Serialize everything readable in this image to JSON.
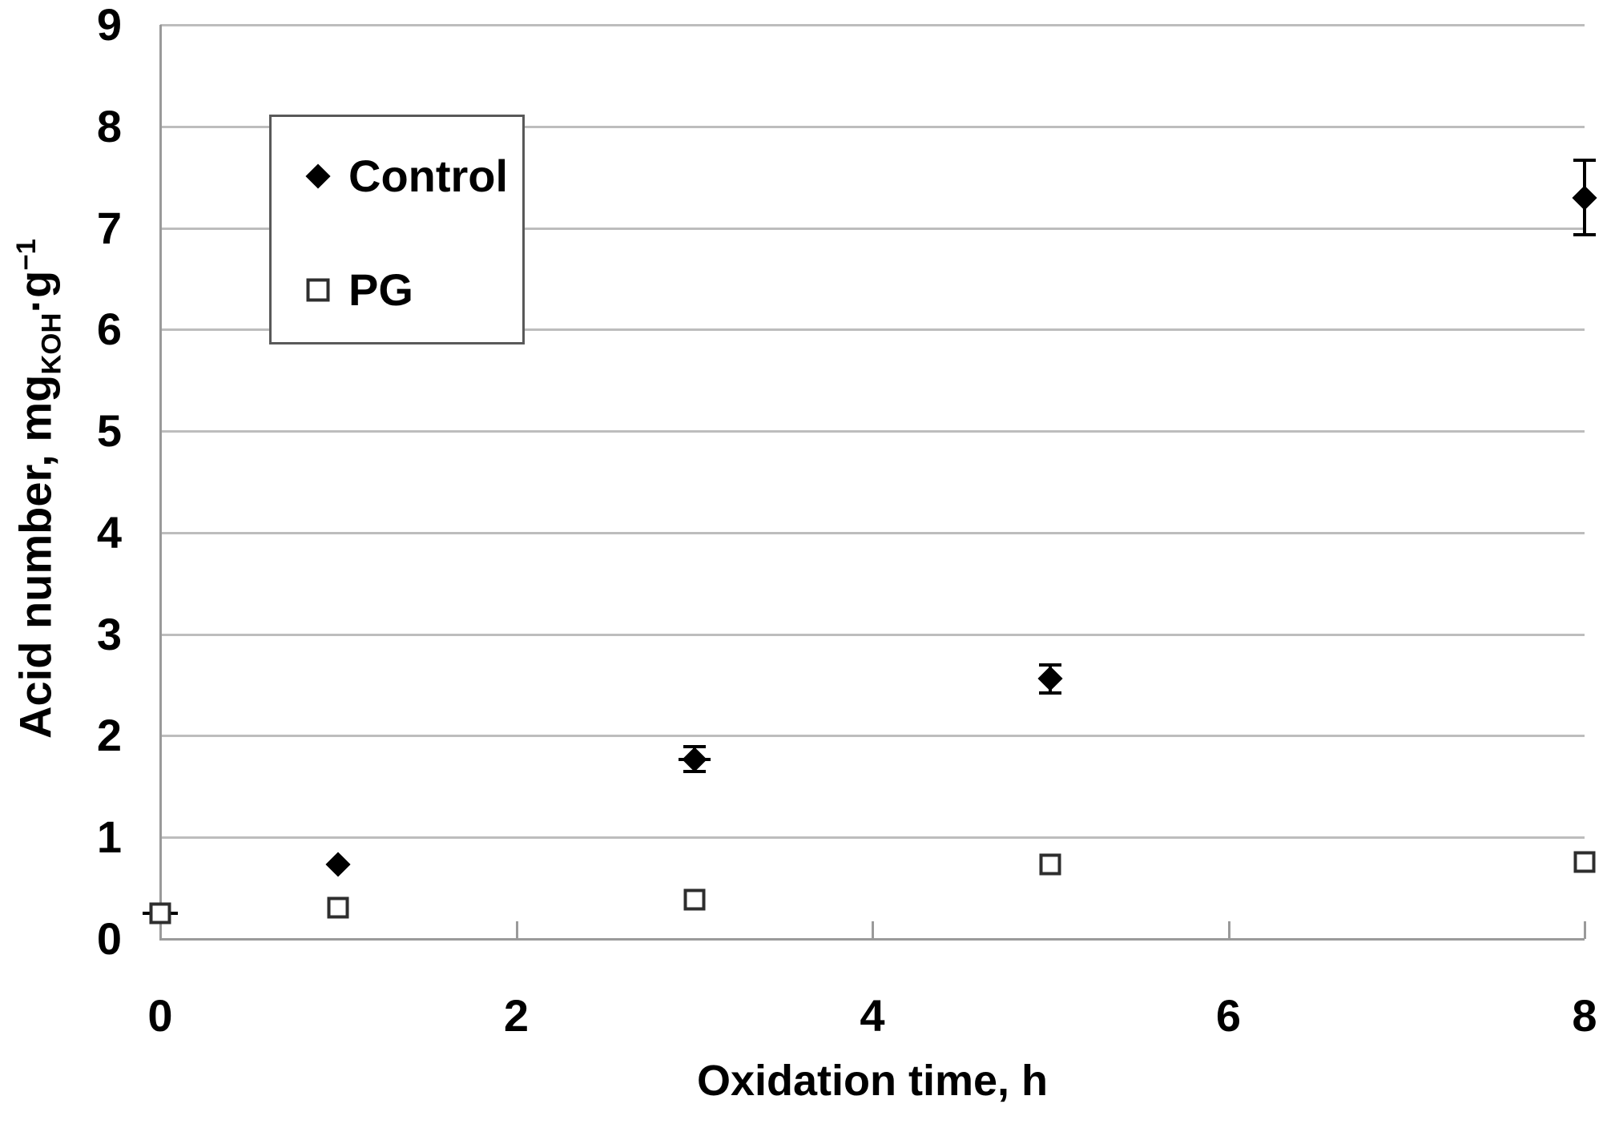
{
  "figure": {
    "background": "#ffffff"
  },
  "chart_data": {
    "type": "scatter",
    "title": "",
    "xlabel": "Oxidation time, h",
    "ylabel_parts": {
      "prefix": "Acid number, mg",
      "subscript": "KOH",
      "middle": "·g",
      "superscript": "−1"
    },
    "xlim": [
      0,
      8
    ],
    "ylim": [
      0,
      9
    ],
    "xticks": [
      0,
      2,
      4,
      6,
      8
    ],
    "yticks": [
      0,
      1,
      2,
      3,
      4,
      5,
      6,
      7,
      8,
      9
    ],
    "grid": "horizontal",
    "legend_position": "top-left",
    "colors": {
      "gridline": "#bdbdbd",
      "axis": "#9a9a9a",
      "marker": "#000000",
      "text": "#000000"
    },
    "series": [
      {
        "name": "Control",
        "marker": "filled-diamond",
        "color": "#000000",
        "points": [
          {
            "x": 1,
            "y": 0.73
          },
          {
            "x": 3,
            "y": 1.77,
            "yerr": 0.12,
            "xerr": 0.09
          },
          {
            "x": 5,
            "y": 2.56,
            "yerr": 0.14
          },
          {
            "x": 8,
            "y": 7.3,
            "yerr": 0.37
          }
        ]
      },
      {
        "name": "PG",
        "marker": "open-square",
        "color": "#000000",
        "points": [
          {
            "x": 0,
            "y": 0.25,
            "xerr": 0.1
          },
          {
            "x": 1,
            "y": 0.31
          },
          {
            "x": 3,
            "y": 0.39
          },
          {
            "x": 5,
            "y": 0.73
          },
          {
            "x": 8,
            "y": 0.76
          }
        ]
      }
    ]
  }
}
